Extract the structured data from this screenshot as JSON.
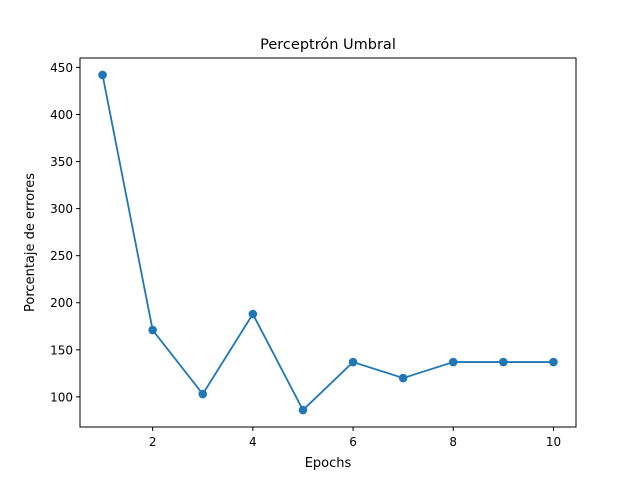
{
  "chart_data": {
    "type": "line",
    "title": "Perceptrón Umbral",
    "xlabel": "Epochs",
    "ylabel": "Porcentaje de errores",
    "xlim": [
      0.55,
      10.45
    ],
    "ylim": [
      68,
      460
    ],
    "xticks": [
      2,
      4,
      6,
      8,
      10
    ],
    "yticks": [
      100,
      150,
      200,
      250,
      300,
      350,
      400,
      450
    ],
    "grid": false,
    "series": [
      {
        "color": "#1f77b4",
        "marker": "circle",
        "x": [
          1,
          2,
          3,
          4,
          5,
          6,
          7,
          8,
          9,
          10
        ],
        "y": [
          442,
          171,
          103,
          188,
          86,
          137,
          120,
          137,
          137,
          137
        ]
      }
    ]
  }
}
